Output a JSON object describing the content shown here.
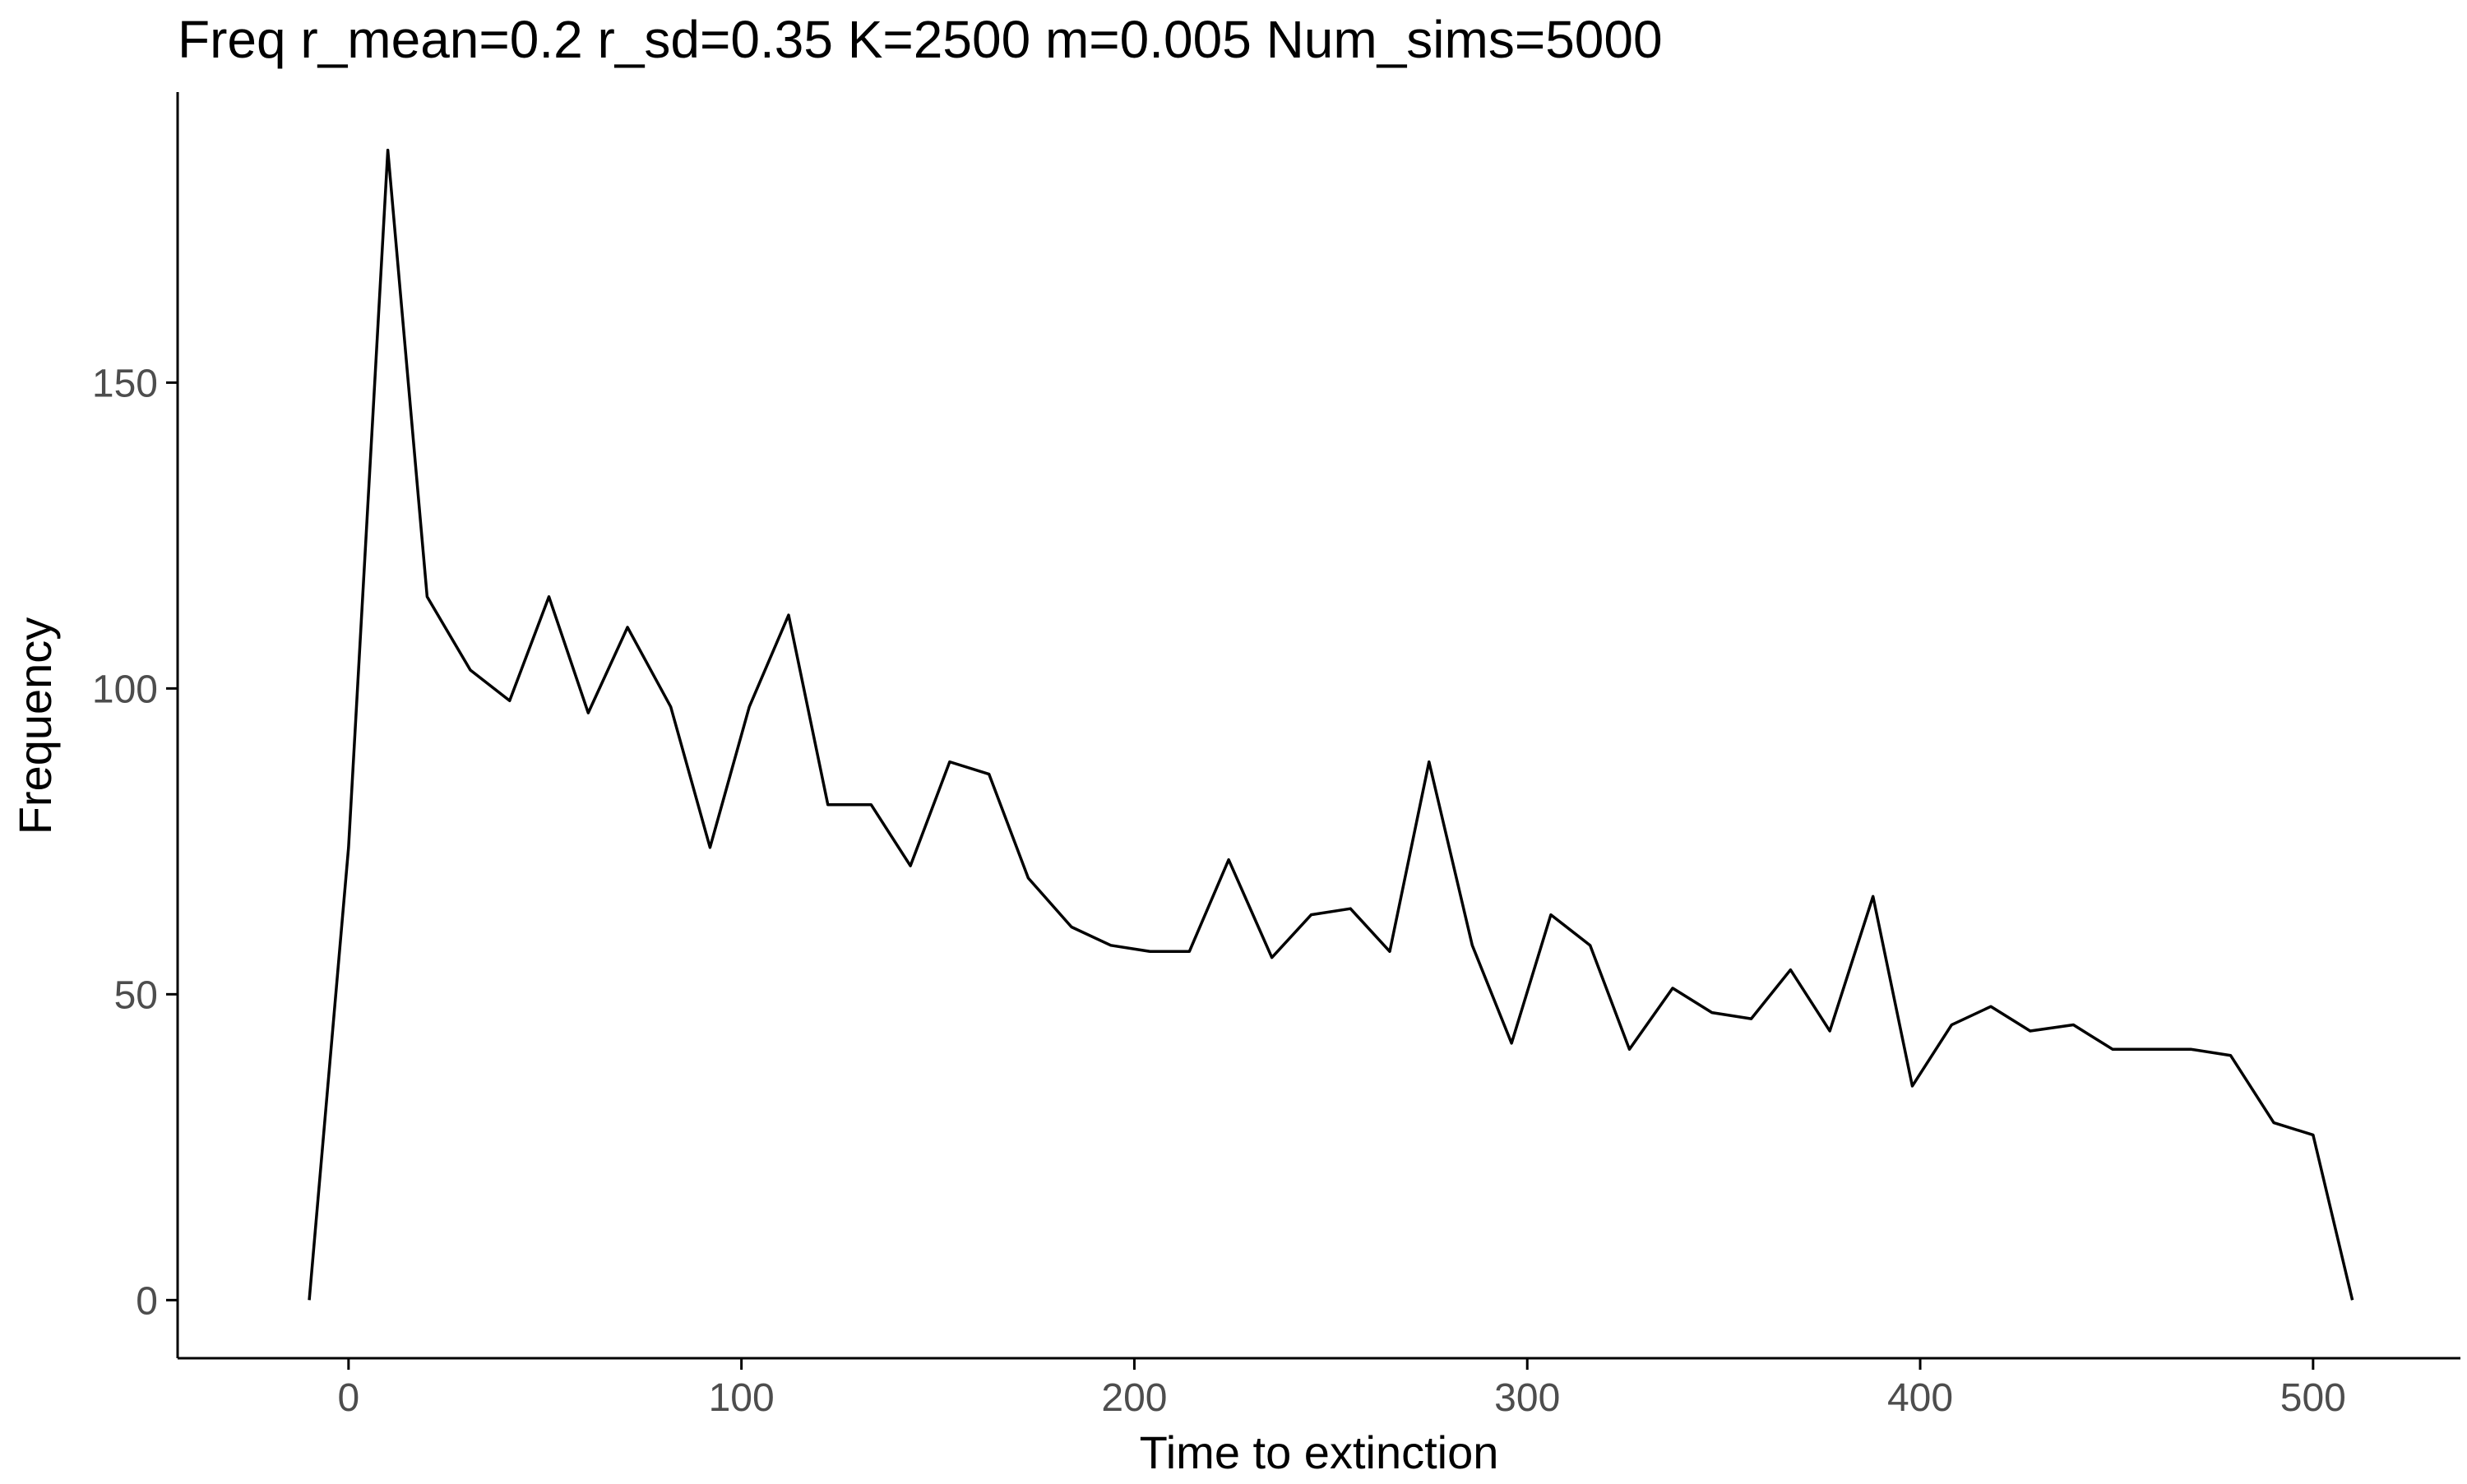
{
  "colors": {
    "background": "#ffffff",
    "line": "#000000",
    "axis": "#000000",
    "tick_label": "#4d4d4d",
    "text": "#000000"
  },
  "chart_data": {
    "type": "line",
    "title": "Freq r_mean=0.2 r_sd=0.35 K=2500 m=0.005 Num_sims=5000",
    "xlabel": "Time to extinction",
    "ylabel": "Frequency",
    "xlim": [
      -43.5,
      537.5
    ],
    "ylim": [
      -9.5,
      197.5
    ],
    "x_ticks": [
      0,
      100,
      200,
      300,
      400,
      500
    ],
    "y_ticks": [
      0,
      50,
      100,
      150
    ],
    "grid": false,
    "legend": "none",
    "series": [
      {
        "x": [
          -10,
          0,
          10,
          20,
          31,
          41,
          51,
          61,
          71,
          82,
          92,
          102,
          112,
          122,
          133,
          143,
          153,
          163,
          173,
          184,
          194,
          204,
          214,
          224,
          235,
          245,
          255,
          265,
          275,
          286,
          296,
          306,
          316,
          326,
          337,
          347,
          357,
          367,
          377,
          388,
          398,
          408,
          418,
          428,
          439,
          449,
          459,
          469,
          479,
          490,
          500,
          510
        ],
        "values": [
          0,
          74,
          188,
          115,
          103,
          98,
          115,
          96,
          110,
          97,
          74,
          97,
          112,
          81,
          81,
          71,
          88,
          86,
          69,
          61,
          58,
          57,
          57,
          72,
          56,
          63,
          64,
          57,
          88,
          58,
          42,
          63,
          58,
          41,
          51,
          47,
          46,
          54,
          44,
          66,
          35,
          45,
          48,
          44,
          45,
          41,
          41,
          41,
          40,
          29,
          27,
          0
        ]
      }
    ]
  }
}
